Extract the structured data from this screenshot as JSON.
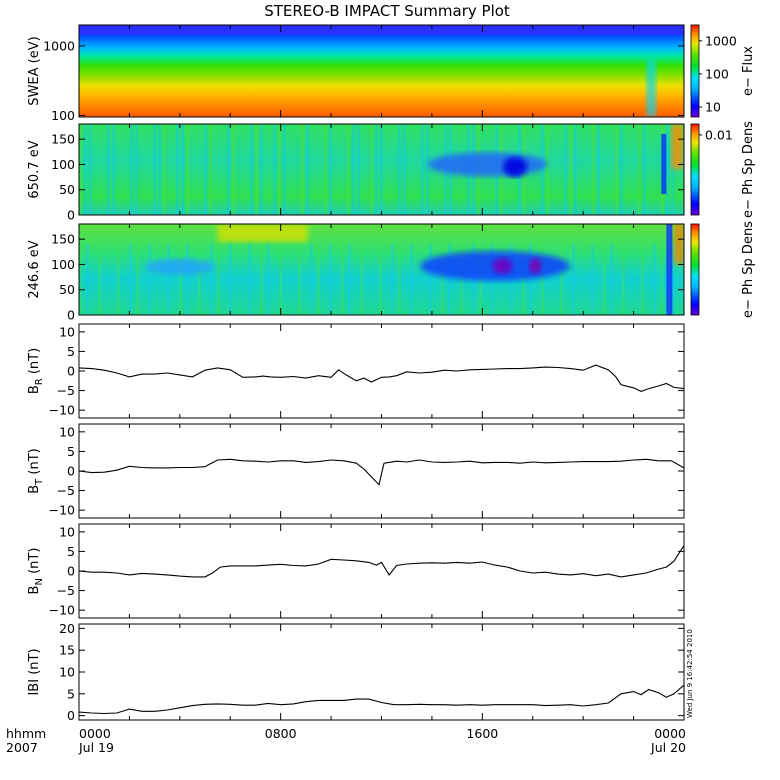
{
  "title": "STEREO-B IMPACT Summary Plot",
  "timestamp": "Wed Jun  9 16:42:54 2010",
  "time_axis": {
    "label_top": "hhmm",
    "label_bottom": "2007",
    "ticks": [
      {
        "hour": 0,
        "top": "0000",
        "bottom": "Jul 19"
      },
      {
        "hour": 8,
        "top": "0800",
        "bottom": ""
      },
      {
        "hour": 16,
        "top": "1600",
        "bottom": ""
      },
      {
        "hour": 24,
        "top": "0000",
        "bottom": "Jul 20"
      }
    ],
    "range_hours": [
      0,
      24
    ]
  },
  "chart_data": [
    {
      "type": "heatmap",
      "ylabel": "SWEA (eV)",
      "yscale": "log",
      "ylim": [
        95,
        2000
      ],
      "yticks": [
        {
          "v": 1000,
          "label": "1000"
        },
        {
          "v": 100,
          "label": "100"
        }
      ],
      "colorbar": {
        "label": "e− Flux",
        "scale": "log",
        "range": [
          5,
          3000
        ],
        "ticks": [
          {
            "v": 1000,
            "label": "1000"
          },
          {
            "v": 100,
            "label": "100"
          },
          {
            "v": 10,
            "label": "10"
          }
        ]
      }
    },
    {
      "type": "heatmap",
      "ylabel": "650.7 eV",
      "ylim": [
        0,
        180
      ],
      "yticks": [
        {
          "v": 150,
          "label": "150"
        },
        {
          "v": 100,
          "label": "100"
        },
        {
          "v": 50,
          "label": "50"
        },
        {
          "v": 0,
          "label": "0"
        }
      ],
      "colorbar": {
        "label": "e− Ph Sp Dens",
        "ticks": [
          {
            "pos": 0.88,
            "label": "0.01"
          }
        ]
      }
    },
    {
      "type": "heatmap",
      "ylabel": "246.6 eV",
      "ylim": [
        0,
        180
      ],
      "yticks": [
        {
          "v": 150,
          "label": "150"
        },
        {
          "v": 100,
          "label": "100"
        },
        {
          "v": 50,
          "label": "50"
        },
        {
          "v": 0,
          "label": "0"
        }
      ],
      "colorbar": {
        "label": "e− Ph Sp Dens",
        "ticks": []
      }
    },
    {
      "type": "line",
      "ylabel": "B_R (nT)",
      "ylabel_main": "B",
      "ylabel_sub": "R",
      "ylabel_unit": "(nT)",
      "ylim": [
        -12,
        12
      ],
      "yticks": [
        {
          "v": 10,
          "label": "10"
        },
        {
          "v": 5,
          "label": "5"
        },
        {
          "v": 0,
          "label": "0"
        },
        {
          "v": -5,
          "label": "−5"
        },
        {
          "v": -10,
          "label": "−10"
        }
      ],
      "x": [
        0,
        0.5,
        1,
        1.5,
        2,
        2.5,
        3,
        3.5,
        4,
        4.5,
        5,
        5.5,
        6,
        6.5,
        7,
        7.3,
        7.6,
        8,
        8.5,
        9,
        9.5,
        10,
        10.3,
        10.6,
        11,
        11.3,
        11.6,
        12,
        12.3,
        12.6,
        13,
        13.5,
        14,
        14.5,
        15,
        15.5,
        16,
        16.5,
        17,
        17.5,
        18,
        18.5,
        19,
        19.5,
        20,
        20.5,
        21,
        21.3,
        21.5,
        21.8,
        22,
        22.3,
        22.6,
        23,
        23.3,
        23.6,
        24
      ],
      "y": [
        0.8,
        0.6,
        0.2,
        -0.5,
        -1.5,
        -0.8,
        -0.8,
        -0.5,
        -1,
        -1.5,
        0.2,
        0.8,
        0.3,
        -1.6,
        -1.5,
        -1.3,
        -1.5,
        -1.6,
        -1.4,
        -1.8,
        -1.2,
        -1.6,
        0.3,
        -1,
        -2.5,
        -1.8,
        -2.8,
        -1.6,
        -1.5,
        -1.2,
        -0.2,
        -0.5,
        -0.3,
        0.2,
        0,
        0.3,
        0.4,
        0.5,
        0.6,
        0.6,
        0.8,
        1.0,
        0.9,
        0.6,
        0.2,
        1.5,
        0.3,
        -1.5,
        -3.5,
        -4,
        -4.3,
        -5.2,
        -4.5,
        -3.8,
        -3.2,
        -4.2,
        -4.5
      ]
    },
    {
      "type": "line",
      "ylabel": "B_T (nT)",
      "ylabel_main": "B",
      "ylabel_sub": "T",
      "ylabel_unit": "(nT)",
      "ylim": [
        -12,
        12
      ],
      "yticks": [
        {
          "v": 10,
          "label": "10"
        },
        {
          "v": 5,
          "label": "5"
        },
        {
          "v": 0,
          "label": "0"
        },
        {
          "v": -5,
          "label": "−5"
        },
        {
          "v": -10,
          "label": "−10"
        }
      ],
      "x": [
        0,
        0.5,
        1,
        1.5,
        2,
        2.5,
        3,
        3.5,
        4,
        4.5,
        5,
        5.2,
        5.5,
        6,
        6.5,
        7,
        7.5,
        8,
        8.5,
        9,
        9.5,
        10,
        10.5,
        11,
        11.3,
        11.6,
        11.9,
        12.1,
        12.3,
        12.6,
        13,
        13.5,
        14,
        14.5,
        15,
        15.5,
        16,
        16.5,
        17,
        17.5,
        18,
        18.5,
        19,
        19.5,
        20,
        20.5,
        21,
        21.5,
        22,
        22.5,
        23,
        23.5,
        24
      ],
      "y": [
        0,
        -0.4,
        -0.3,
        0.2,
        1.2,
        0.9,
        0.8,
        0.8,
        0.9,
        0.9,
        1.1,
        1.8,
        2.8,
        3,
        2.6,
        2.5,
        2.3,
        2.6,
        2.6,
        2.2,
        2.4,
        2.8,
        2.6,
        2,
        0.5,
        -1.5,
        -3.5,
        2,
        2.2,
        2.5,
        2.3,
        2.8,
        2.3,
        2.2,
        2.3,
        2.5,
        2.1,
        2.2,
        2.2,
        2.0,
        2.3,
        2.1,
        2.2,
        2.3,
        2.4,
        2.4,
        2.4,
        2.5,
        2.8,
        3.0,
        2.6,
        2.6,
        0.8
      ]
    },
    {
      "type": "line",
      "ylabel": "B_N (nT)",
      "ylabel_main": "B",
      "ylabel_sub": "N",
      "ylabel_unit": "(nT)",
      "ylim": [
        -12,
        12
      ],
      "yticks": [
        {
          "v": 10,
          "label": "10"
        },
        {
          "v": 5,
          "label": "5"
        },
        {
          "v": 0,
          "label": "0"
        },
        {
          "v": -5,
          "label": "−5"
        },
        {
          "v": -10,
          "label": "−10"
        }
      ],
      "x": [
        0,
        0.5,
        1,
        1.5,
        2,
        2.5,
        3,
        3.5,
        4,
        4.5,
        5,
        5.3,
        5.6,
        6,
        6.5,
        7,
        7.5,
        8,
        8.5,
        9,
        9.5,
        10,
        10.5,
        11,
        11.5,
        11.8,
        12,
        12.3,
        12.6,
        13,
        13.5,
        14,
        14.5,
        15,
        15.5,
        16,
        16.5,
        17,
        17.5,
        18,
        18.5,
        19,
        19.5,
        20,
        20.5,
        21,
        21.5,
        22,
        22.5,
        23,
        23.3,
        23.6,
        24
      ],
      "y": [
        0,
        -0.3,
        -0.3,
        -0.5,
        -1,
        -0.6,
        -0.8,
        -1,
        -1.3,
        -1.5,
        -1.5,
        -0.5,
        1,
        1.3,
        1.3,
        1.3,
        1.5,
        1.7,
        1.4,
        1.3,
        1.8,
        3,
        2.8,
        2.6,
        2.2,
        1.5,
        2.2,
        -1,
        1.4,
        1.8,
        2,
        2.1,
        2,
        2.2,
        2.0,
        2.3,
        1.5,
        1.0,
        0,
        -0.5,
        -0.3,
        -0.8,
        -1,
        -0.7,
        -1.2,
        -0.8,
        -1.5,
        -1.0,
        -0.5,
        0.5,
        1.0,
        2.5,
        6.5
      ]
    },
    {
      "type": "line",
      "ylabel": "|B| (nT)",
      "ylabel_main": "IBI",
      "ylabel_sub": "",
      "ylabel_unit": "(nT)",
      "ylim": [
        -1,
        21
      ],
      "yticks": [
        {
          "v": 20,
          "label": "20"
        },
        {
          "v": 15,
          "label": "15"
        },
        {
          "v": 10,
          "label": "10"
        },
        {
          "v": 5,
          "label": "5"
        },
        {
          "v": 0,
          "label": "0"
        }
      ],
      "x": [
        0,
        0.5,
        1,
        1.5,
        2,
        2.5,
        3,
        3.5,
        4,
        4.5,
        5,
        5.5,
        6,
        6.5,
        7,
        7.5,
        8,
        8.5,
        9,
        9.5,
        10,
        10.5,
        11,
        11.5,
        12,
        12.5,
        13,
        13.5,
        14,
        14.5,
        15,
        15.5,
        16,
        16.5,
        17,
        17.5,
        18,
        18.5,
        19,
        19.5,
        20,
        20.5,
        21,
        21.5,
        22,
        22.3,
        22.6,
        23,
        23.3,
        23.6,
        24
      ],
      "y": [
        0.8,
        0.6,
        0.5,
        0.6,
        1.5,
        1,
        1,
        1.3,
        1.8,
        2.3,
        2.6,
        2.7,
        2.6,
        2.4,
        2.4,
        2.8,
        2.5,
        2.7,
        3.2,
        3.5,
        3.5,
        3.5,
        3.8,
        3.8,
        3.0,
        2.5,
        2.5,
        2.6,
        2.5,
        2.5,
        2.4,
        2.5,
        2.4,
        2.5,
        2.5,
        2.5,
        2.5,
        2.3,
        2.4,
        2.5,
        2.2,
        2.5,
        2.9,
        5.0,
        5.5,
        4.8,
        6.0,
        5.2,
        4.2,
        5.0,
        7.0
      ]
    }
  ]
}
